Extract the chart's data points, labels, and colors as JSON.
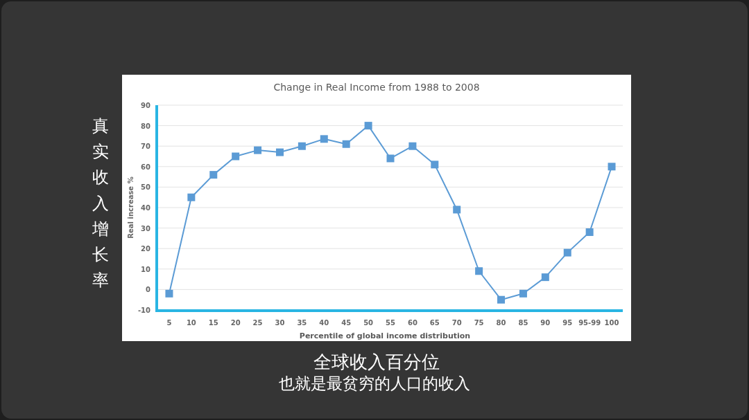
{
  "chart_data": {
    "type": "line",
    "title": "Change in Real Income from 1988 to 2008",
    "xlabel": "Percentile of global income distribution",
    "ylabel": "Real increase %",
    "categories": [
      "5",
      "10",
      "15",
      "20",
      "25",
      "30",
      "35",
      "40",
      "45",
      "50",
      "55",
      "60",
      "65",
      "70",
      "75",
      "80",
      "85",
      "90",
      "95",
      "95-99",
      "100"
    ],
    "series": [
      {
        "color": "#5b9bd5",
        "values": [
          -2,
          45,
          56,
          65,
          68,
          67,
          70,
          73.5,
          71,
          80,
          64,
          70,
          61,
          39,
          9,
          -5,
          -2,
          6,
          18,
          28,
          60
        ]
      }
    ],
    "ylim": [
      -10,
      90
    ],
    "yticks": [
      -10,
      0,
      10,
      20,
      30,
      40,
      50,
      60,
      70,
      80,
      90
    ],
    "grid": "y",
    "marker": "square",
    "annotations": [
      "真实收入增长率",
      "全球收入百分位",
      "也就是最贫穷的人口的收入"
    ]
  }
}
